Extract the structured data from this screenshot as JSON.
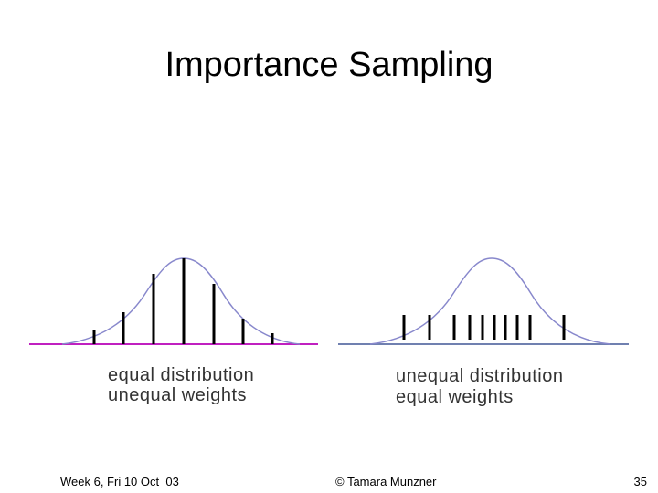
{
  "header": {
    "title": "Importance Sampling"
  },
  "diagrams": [
    {
      "caption": [
        "equal distribution",
        "unequal weights"
      ]
    },
    {
      "caption": [
        "unequal distribution",
        "equal weights"
      ]
    }
  ],
  "footer": {
    "left": "Week 6, Fri 10 Oct  03",
    "center": "© Tamara Munzner",
    "right": "35"
  }
}
